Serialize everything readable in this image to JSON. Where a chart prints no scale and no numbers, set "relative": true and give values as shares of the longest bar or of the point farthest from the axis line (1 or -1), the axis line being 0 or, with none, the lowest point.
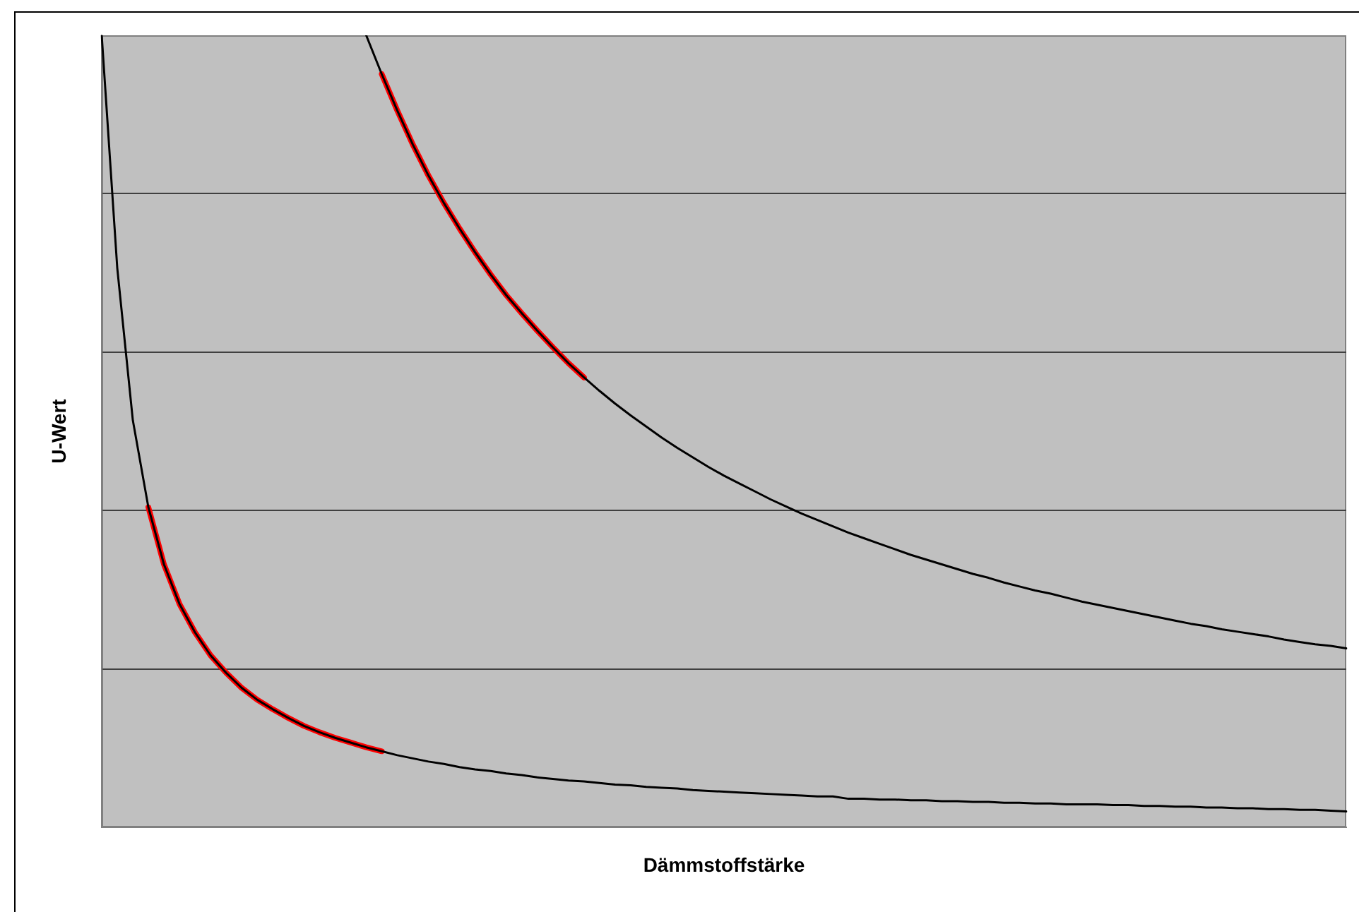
{
  "chart_data": {
    "type": "line",
    "relative": true,
    "xlabel": "Dämmstoffstärke",
    "ylabel": "U-Wert",
    "categories": [
      null,
      null,
      null,
      null,
      null,
      null,
      null,
      null,
      null,
      null,
      null,
      null,
      null,
      null,
      null,
      null,
      null,
      null,
      null,
      null,
      null,
      null,
      null,
      null,
      null,
      null,
      null,
      null,
      null,
      null,
      null,
      null,
      null,
      null,
      null,
      null,
      null,
      null,
      null,
      null,
      null,
      null,
      null,
      null,
      null,
      null,
      null,
      null,
      null,
      null,
      null,
      null,
      null,
      null,
      null,
      null,
      null,
      null,
      null,
      null,
      null,
      null,
      null,
      null,
      null,
      null,
      null,
      null,
      null,
      null,
      null,
      null,
      null,
      null,
      null,
      null,
      null,
      null,
      null,
      null,
      null
    ],
    "series": [
      {
        "color": "#000000",
        "values": [
          1,
          0.706,
          0.514,
          0.404,
          0.332,
          0.282,
          0.246,
          0.217,
          0.195,
          0.176,
          0.161,
          0.149,
          0.138,
          0.128,
          0.12,
          0.113,
          0.107,
          0.101,
          0.096,
          0.091,
          0.087,
          0.083,
          0.08,
          0.076,
          0.073,
          0.071,
          0.068,
          0.066,
          0.063,
          0.061,
          0.059,
          0.058,
          0.056,
          0.054,
          0.053,
          0.051,
          0.05,
          0.049,
          0.047,
          0.046,
          0.045,
          0.044,
          0.043,
          0.042,
          0.041,
          0.04,
          0.039,
          0.039,
          0.036,
          0.036,
          0.035,
          0.035,
          0.034,
          0.034,
          0.033,
          0.033,
          0.032,
          0.032,
          0.031,
          0.031,
          0.03,
          0.03,
          0.029,
          0.029,
          0.029,
          0.028,
          0.028,
          0.027,
          0.027,
          0.026,
          0.026,
          0.025,
          0.025,
          0.024,
          0.024,
          0.023,
          0.023,
          0.022,
          0.022,
          0.021,
          0.02
        ]
      },
      {
        "color": "#000000",
        "values": [
          null,
          null,
          null,
          null,
          null,
          null,
          null,
          null,
          null,
          null,
          null,
          null,
          null,
          null,
          null,
          null,
          null,
          1,
          0.951,
          0.905,
          0.862,
          0.823,
          0.788,
          0.756,
          0.726,
          0.698,
          0.672,
          0.649,
          0.627,
          0.606,
          0.586,
          0.568,
          0.551,
          0.535,
          0.52,
          0.506,
          0.492,
          0.479,
          0.467,
          0.455,
          0.444,
          0.434,
          0.424,
          0.414,
          0.405,
          0.396,
          0.388,
          0.38,
          0.372,
          0.365,
          0.358,
          0.351,
          0.344,
          0.338,
          0.332,
          0.326,
          0.32,
          0.315,
          0.309,
          0.304,
          0.299,
          0.295,
          0.29,
          0.285,
          0.281,
          0.277,
          0.273,
          0.269,
          0.265,
          0.261,
          0.257,
          0.254,
          0.25,
          0.247,
          0.244,
          0.241,
          0.237,
          0.234,
          0.231,
          0.229,
          0.226
        ]
      },
      {
        "color": "#ff0000",
        "values": [
          null,
          null,
          null,
          0.404,
          0.332,
          0.282,
          0.246,
          0.217,
          0.195,
          0.176,
          0.161,
          0.149,
          0.138,
          0.128,
          0.12,
          0.113,
          0.107,
          0.101,
          0.096,
          null,
          null,
          null,
          null,
          null,
          null,
          null,
          null,
          null,
          null,
          null,
          null,
          null,
          null,
          null,
          null,
          null,
          null,
          null,
          null,
          null,
          null,
          null,
          null,
          null,
          null,
          null,
          null,
          null,
          null,
          null,
          null,
          null,
          null,
          null,
          null,
          null,
          null,
          null,
          null,
          null,
          null,
          null,
          null,
          null,
          null,
          null,
          null,
          null,
          null,
          null,
          null,
          null,
          null,
          null,
          null,
          null,
          null,
          null,
          null,
          null,
          null
        ]
      },
      {
        "color": "#ff0000",
        "values": [
          null,
          null,
          null,
          null,
          null,
          null,
          null,
          null,
          null,
          null,
          null,
          null,
          null,
          null,
          null,
          null,
          null,
          null,
          0.951,
          0.905,
          0.862,
          0.823,
          0.788,
          0.756,
          0.726,
          0.698,
          0.672,
          0.649,
          0.627,
          0.606,
          0.586,
          0.568,
          null,
          null,
          null,
          null,
          null,
          null,
          null,
          null,
          null,
          null,
          null,
          null,
          null,
          null,
          null,
          null,
          null,
          null,
          null,
          null,
          null,
          null,
          null,
          null,
          null,
          null,
          null,
          null,
          null,
          null,
          null,
          null,
          null,
          null,
          null,
          null,
          null,
          null,
          null,
          null,
          null,
          null,
          null,
          null,
          null,
          null,
          null,
          null,
          null
        ]
      }
    ],
    "grid": "y",
    "legend": false
  }
}
